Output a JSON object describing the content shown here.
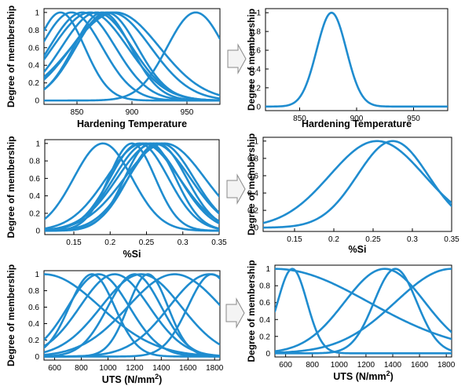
{
  "colors": {
    "line": "#1f8ccf",
    "arrow_fill": "#f4f4f4",
    "arrow_stroke": "#888888"
  },
  "chart_data": [
    {
      "type": "line",
      "id": "ht-all",
      "xlabel": "Hardening Temperature",
      "ylabel": "Degree of membership",
      "xlim": [
        820,
        980
      ],
      "ylim": [
        0,
        1
      ],
      "xticks": [
        850,
        900,
        950
      ],
      "yticks": [
        0,
        0.2,
        0.4,
        0.6,
        0.8,
        1
      ],
      "series": [
        {
          "kind": "gauss",
          "center": 835,
          "sigma": 22,
          "bias": 0
        },
        {
          "kind": "gauss",
          "center": 845,
          "sigma": 28,
          "bias": 0
        },
        {
          "kind": "gauss",
          "center": 855,
          "sigma": 30,
          "bias": 0
        },
        {
          "kind": "gauss",
          "center": 862,
          "sigma": 34,
          "bias": 0
        },
        {
          "kind": "gauss",
          "center": 868,
          "sigma": 32,
          "bias": 0
        },
        {
          "kind": "gauss",
          "center": 873,
          "sigma": 26,
          "bias": 0
        },
        {
          "kind": "gauss",
          "center": 877,
          "sigma": 28,
          "bias": 0
        },
        {
          "kind": "gauss",
          "center": 881,
          "sigma": 36,
          "bias": 0
        },
        {
          "kind": "gauss",
          "center": 885,
          "sigma": 40,
          "bias": 0
        },
        {
          "kind": "gauss",
          "center": 958,
          "sigma": 26,
          "bias": 0
        }
      ]
    },
    {
      "type": "line",
      "id": "ht-one",
      "xlabel": "Hardening Temperature",
      "ylabel": "Degree of membership",
      "xlim": [
        820,
        980
      ],
      "ylim": [
        0,
        1
      ],
      "xticks": [
        850,
        900,
        950
      ],
      "yticks": [
        0,
        0.2,
        0.4,
        0.6,
        0.8,
        1
      ],
      "series": [
        {
          "kind": "gauss",
          "center": 878,
          "sigma": 13,
          "bias": 0
        }
      ]
    },
    {
      "type": "line",
      "id": "si-all",
      "xlabel": "%Si",
      "ylabel": "Degree of membership",
      "xlim": [
        0.11,
        0.35
      ],
      "ylim": [
        0,
        1
      ],
      "xticks": [
        0.15,
        0.2,
        0.25,
        0.3,
        0.35
      ],
      "yticks": [
        0,
        0.2,
        0.4,
        0.6,
        0.8,
        1
      ],
      "series": [
        {
          "kind": "gauss",
          "center": 0.19,
          "sigma": 0.04,
          "bias": 0
        },
        {
          "kind": "gauss",
          "center": 0.23,
          "sigma": 0.032,
          "bias": 0
        },
        {
          "kind": "gauss",
          "center": 0.24,
          "sigma": 0.04,
          "bias": 0
        },
        {
          "kind": "gauss",
          "center": 0.245,
          "sigma": 0.05,
          "bias": 0
        },
        {
          "kind": "gauss",
          "center": 0.25,
          "sigma": 0.045,
          "bias": 0
        },
        {
          "kind": "gauss",
          "center": 0.255,
          "sigma": 0.035,
          "bias": 0
        },
        {
          "kind": "gauss",
          "center": 0.26,
          "sigma": 0.05,
          "bias": 0
        },
        {
          "kind": "gauss",
          "center": 0.265,
          "sigma": 0.04,
          "bias": 0
        },
        {
          "kind": "gauss",
          "center": 0.27,
          "sigma": 0.045,
          "bias": 0
        },
        {
          "kind": "gauss",
          "center": 0.275,
          "sigma": 0.055,
          "bias": 0
        }
      ]
    },
    {
      "type": "line",
      "id": "si-two",
      "xlabel": "%Si",
      "ylabel": "Degree of membership",
      "xlim": [
        0.11,
        0.35
      ],
      "ylim": [
        0,
        1
      ],
      "xticks": [
        0.15,
        0.2,
        0.25,
        0.3,
        0.35
      ],
      "yticks": [
        0,
        0.2,
        0.4,
        0.6,
        0.8,
        1
      ],
      "series": [
        {
          "kind": "gauss",
          "center": 0.255,
          "sigma": 0.06,
          "bias": 0
        },
        {
          "kind": "gauss",
          "center": 0.275,
          "sigma": 0.045,
          "bias": 0
        }
      ]
    },
    {
      "type": "line",
      "id": "uts-all",
      "xlabel": "UTS (N/mm",
      "xlabel_sup": "2",
      "xlabel_after": ")",
      "ylabel": "Degree of membership",
      "xlim": [
        520,
        1840
      ],
      "ylim": [
        0,
        1
      ],
      "xticks": [
        600,
        800,
        1000,
        1200,
        1400,
        1600,
        1800
      ],
      "yticks": [
        0,
        0.2,
        0.4,
        0.6,
        0.8,
        1
      ],
      "series": [
        {
          "kind": "gauss",
          "center": 520,
          "sigma": 420,
          "bias": 0
        },
        {
          "kind": "gauss",
          "center": 880,
          "sigma": 170,
          "bias": 0
        },
        {
          "kind": "gauss",
          "center": 930,
          "sigma": 230,
          "bias": 0
        },
        {
          "kind": "gauss",
          "center": 1050,
          "sigma": 260,
          "bias": 0
        },
        {
          "kind": "gauss",
          "center": 1200,
          "sigma": 200,
          "bias": 0
        },
        {
          "kind": "gauss",
          "center": 1250,
          "sigma": 300,
          "bias": 0
        },
        {
          "kind": "gauss",
          "center": 1300,
          "sigma": 150,
          "bias": 0
        },
        {
          "kind": "gauss",
          "center": 1500,
          "sigma": 350,
          "bias": 0
        },
        {
          "kind": "gauss",
          "center": 1760,
          "sigma": 300,
          "bias": 0
        },
        {
          "kind": "gauss",
          "center": 1780,
          "sigma": 180,
          "bias": 0
        }
      ]
    },
    {
      "type": "line",
      "id": "uts-five",
      "xlabel": "UTS (N/mm",
      "xlabel_sup": "2",
      "xlabel_after": ")",
      "ylabel": "Degree of membership",
      "xlim": [
        520,
        1840
      ],
      "ylim": [
        0,
        1
      ],
      "xticks": [
        600,
        800,
        1000,
        1200,
        1400,
        1600,
        1800
      ],
      "yticks": [
        0,
        0.2,
        0.4,
        0.6,
        0.8,
        1
      ],
      "series": [
        {
          "kind": "gauss",
          "center": 520,
          "sigma": 700,
          "bias": 0
        },
        {
          "kind": "gauss",
          "center": 650,
          "sigma": 110,
          "bias": 0
        },
        {
          "kind": "gauss",
          "center": 1340,
          "sigma": 300,
          "bias": 0
        },
        {
          "kind": "gauss",
          "center": 1420,
          "sigma": 160,
          "bias": 0
        },
        {
          "kind": "gauss",
          "center": 1840,
          "sigma": 420,
          "bias": 0
        }
      ]
    }
  ]
}
